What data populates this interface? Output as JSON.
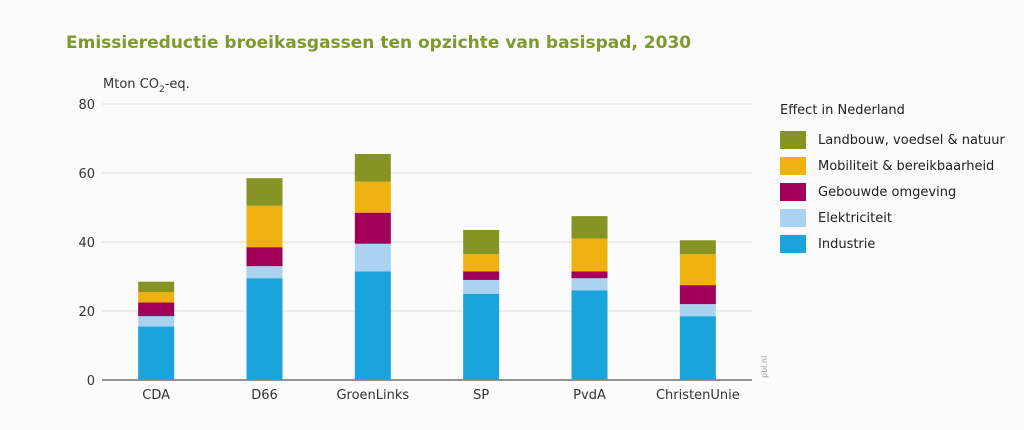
{
  "chart_data": {
    "type": "bar",
    "stacked": true,
    "title": "Emissiereductie broeikasgassen ten opzichte van basispad, 2030",
    "ylabel_parts": [
      "Mton CO",
      "2",
      "-eq."
    ],
    "xlabel": "",
    "ylim": [
      0,
      80
    ],
    "yticks": [
      0,
      20,
      40,
      60,
      80
    ],
    "grid": true,
    "categories": [
      "CDA",
      "D66",
      "GroenLinks",
      "SP",
      "PvdA",
      "ChristenUnie"
    ],
    "legend_title": "Effect in Nederland",
    "legend_placement": "right",
    "series": [
      {
        "name": "Industrie",
        "color": "#1ba3dc",
        "values": [
          15.5,
          29.5,
          31.5,
          25,
          26,
          18.5
        ]
      },
      {
        "name": "Elektriciteit",
        "color": "#a9d3f0",
        "values": [
          3,
          3.5,
          8,
          4,
          3.5,
          3.5
        ]
      },
      {
        "name": "Gebouwde omgeving",
        "color": "#a0005a",
        "values": [
          4,
          5.5,
          9,
          2.5,
          2,
          5.5
        ]
      },
      {
        "name": "Mobiliteit & bereikbaarheid",
        "color": "#eeb10e",
        "values": [
          3,
          12,
          9,
          5,
          9.5,
          9
        ]
      },
      {
        "name": "Landbouw, voedsel & natuur",
        "color": "#869424",
        "values": [
          3,
          8,
          8,
          7,
          6.5,
          4
        ]
      }
    ],
    "source_credit": "pbl.nl"
  }
}
